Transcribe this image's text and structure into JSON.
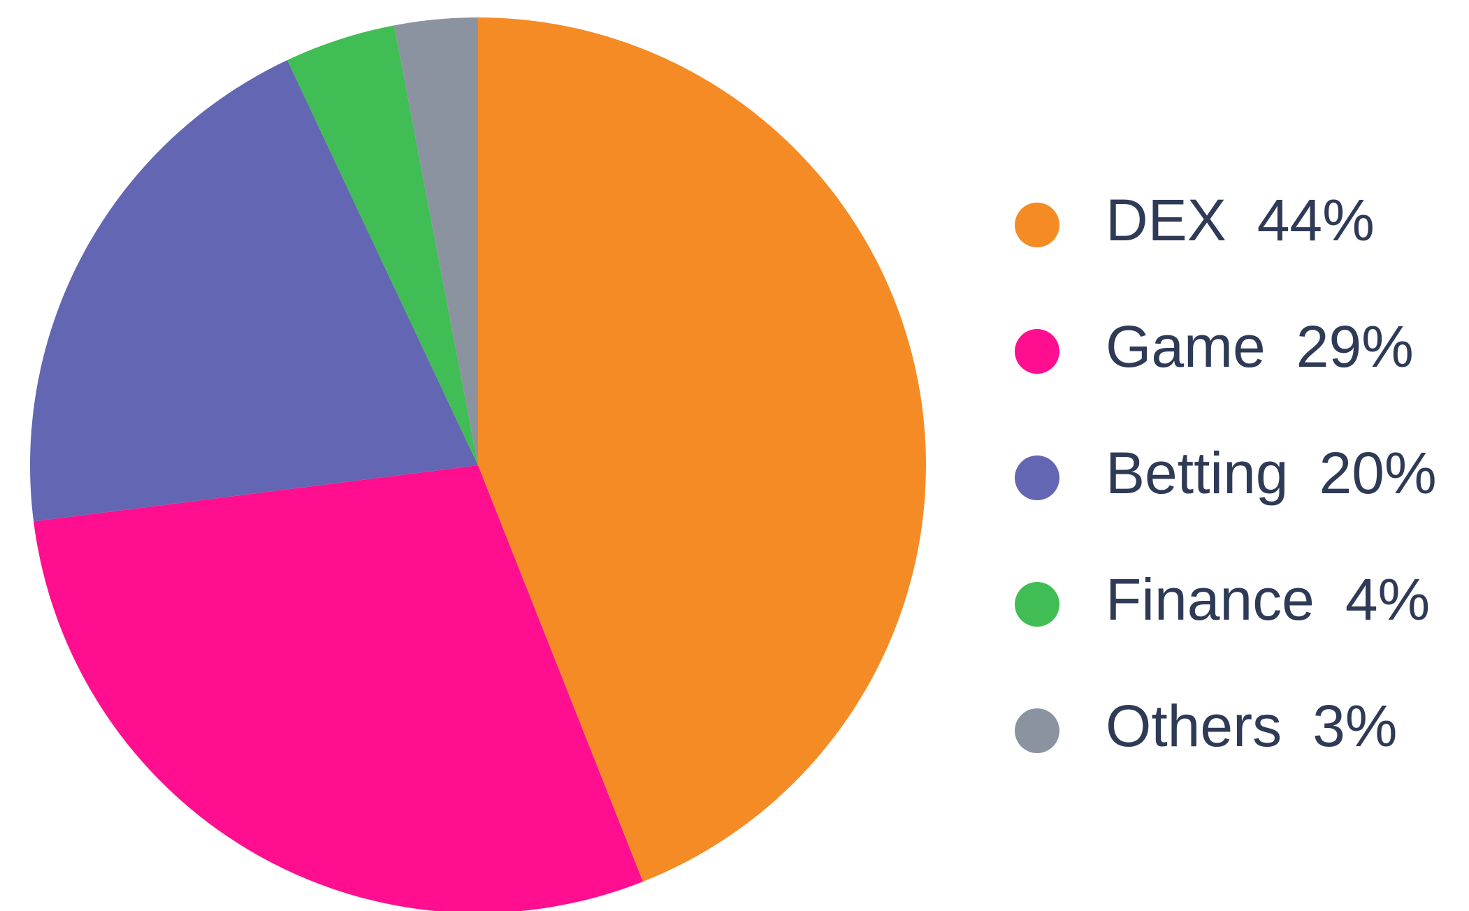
{
  "chart_data": {
    "type": "pie",
    "categories": [
      "DEX",
      "Game",
      "Betting",
      "Finance",
      "Others"
    ],
    "values": [
      44,
      29,
      20,
      4,
      3
    ],
    "value_labels": [
      "44%",
      "29%",
      "20%",
      "4%",
      "3%"
    ],
    "colors": [
      "#f58b25",
      "#ff0f8f",
      "#6366b3",
      "#41bd55",
      "#8b93a1"
    ],
    "legend": "right"
  }
}
